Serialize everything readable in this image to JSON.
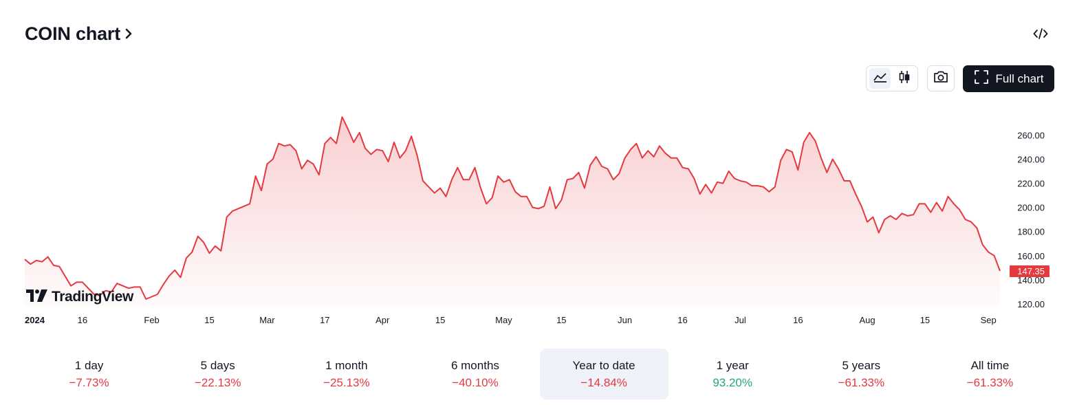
{
  "header": {
    "title": "COIN chart"
  },
  "toolbar": {
    "full_chart_label": "Full chart"
  },
  "chart_data": {
    "type": "area",
    "x_tick_labels": [
      {
        "label": "2024",
        "index": 0,
        "bold": true
      },
      {
        "label": "16",
        "index": 10
      },
      {
        "label": "Feb",
        "index": 22
      },
      {
        "label": "15",
        "index": 32
      },
      {
        "label": "Mar",
        "index": 42
      },
      {
        "label": "17",
        "index": 52
      },
      {
        "label": "Apr",
        "index": 62
      },
      {
        "label": "15",
        "index": 72
      },
      {
        "label": "May",
        "index": 83
      },
      {
        "label": "15",
        "index": 93
      },
      {
        "label": "Jun",
        "index": 104
      },
      {
        "label": "16",
        "index": 114
      },
      {
        "label": "Jul",
        "index": 124
      },
      {
        "label": "16",
        "index": 134
      },
      {
        "label": "Aug",
        "index": 146
      },
      {
        "label": "15",
        "index": 156
      },
      {
        "label": "Sep",
        "index": 167
      }
    ],
    "y_ticks": [
      "120.00",
      "140.00",
      "160.00",
      "180.00",
      "200.00",
      "220.00",
      "240.00",
      "260.00"
    ],
    "ylim": [
      113,
      280
    ],
    "last_price": "147.35",
    "last_value": 147.35,
    "line_color": "#e5383f",
    "grid": false,
    "values": [
      157,
      153,
      156,
      155,
      159,
      152,
      151,
      143,
      135,
      138,
      138,
      133,
      128,
      127,
      131,
      130,
      137,
      135,
      133,
      134,
      134,
      124,
      126,
      128,
      136,
      143,
      148,
      142,
      158,
      163,
      176,
      171,
      162,
      168,
      164,
      192,
      197,
      199,
      201,
      203,
      226,
      214,
      236,
      240,
      253,
      251,
      252,
      247,
      232,
      239,
      236,
      227,
      253,
      258,
      253,
      275,
      265,
      254,
      262,
      249,
      244,
      248,
      247,
      238,
      254,
      241,
      247,
      259,
      243,
      222,
      217,
      212,
      216,
      209,
      223,
      233,
      223,
      223,
      233,
      216,
      203,
      208,
      226,
      221,
      223,
      213,
      209,
      209,
      200,
      199,
      201,
      217,
      199,
      206,
      223,
      224,
      229,
      216,
      235,
      242,
      234,
      232,
      223,
      228,
      241,
      248,
      253,
      241,
      247,
      242,
      251,
      245,
      241,
      241,
      233,
      232,
      224,
      211,
      219,
      212,
      221,
      220,
      230,
      224,
      222,
      221,
      218,
      218,
      217,
      213,
      217,
      239,
      248,
      246,
      231,
      254,
      262,
      255,
      241,
      229,
      240,
      232,
      222,
      222,
      211,
      201,
      188,
      192,
      179,
      190,
      193,
      190,
      195,
      193,
      194,
      203,
      203,
      196,
      204,
      197,
      209,
      203,
      198,
      190,
      188,
      183,
      169,
      163,
      160,
      147.35
    ]
  },
  "ranges": [
    {
      "label": "1 day",
      "change": "−7.73%",
      "positive": false,
      "active": false
    },
    {
      "label": "5 days",
      "change": "−22.13%",
      "positive": false,
      "active": false
    },
    {
      "label": "1 month",
      "change": "−25.13%",
      "positive": false,
      "active": false
    },
    {
      "label": "6 months",
      "change": "−40.10%",
      "positive": false,
      "active": false
    },
    {
      "label": "Year to date",
      "change": "−14.84%",
      "positive": false,
      "active": true
    },
    {
      "label": "1 year",
      "change": "93.20%",
      "positive": true,
      "active": false
    },
    {
      "label": "5 years",
      "change": "−61.33%",
      "positive": false,
      "active": false
    },
    {
      "label": "All time",
      "change": "−61.33%",
      "positive": false,
      "active": false
    }
  ]
}
